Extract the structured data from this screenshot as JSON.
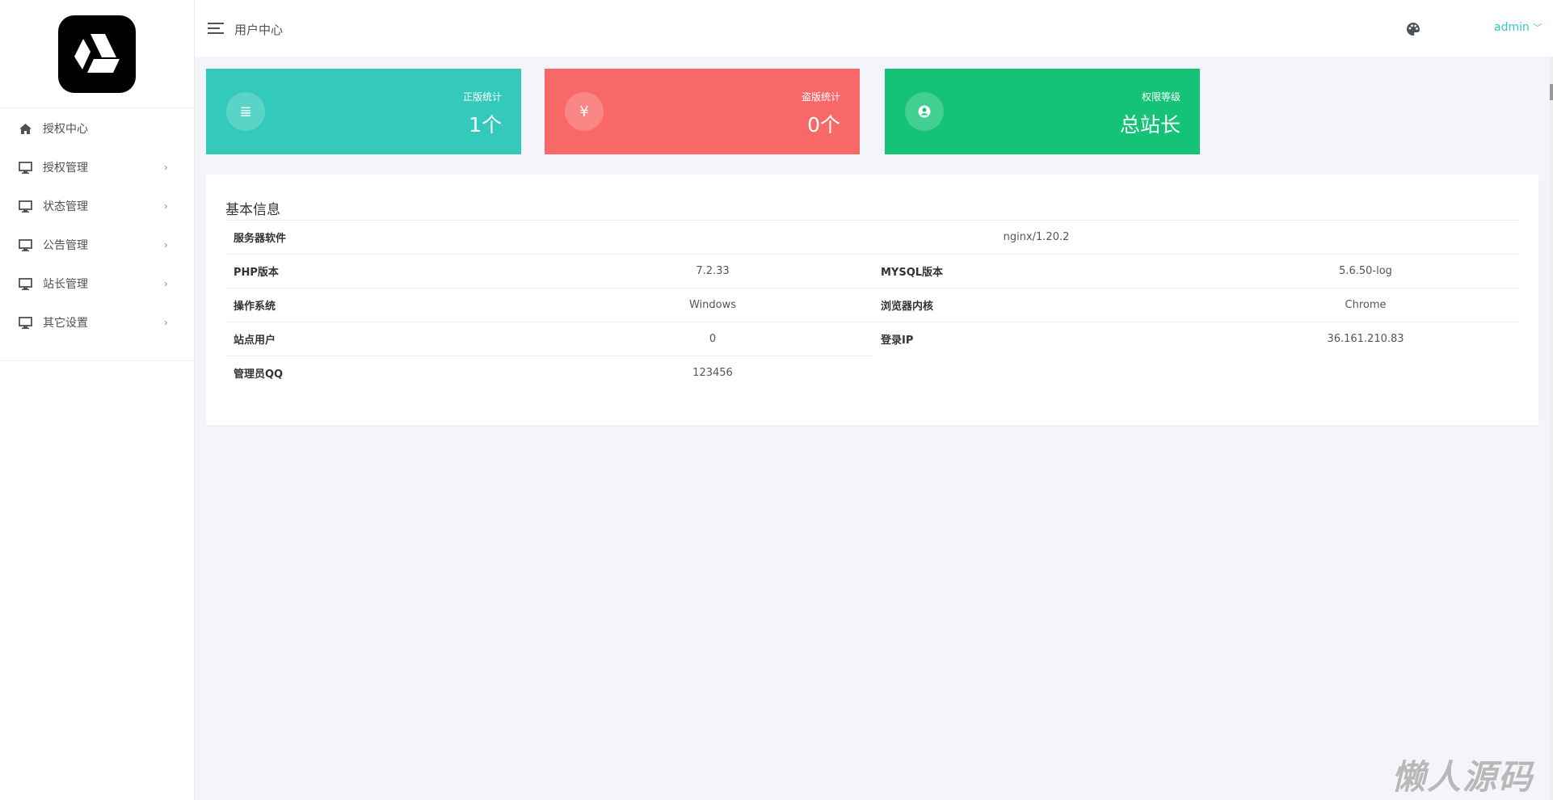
{
  "sidebar": {
    "items": [
      {
        "label": "授权中心",
        "icon": "home-icon"
      },
      {
        "label": "授权管理",
        "icon": "monitor-icon"
      },
      {
        "label": "状态管理",
        "icon": "monitor-icon"
      },
      {
        "label": "公告管理",
        "icon": "monitor-icon"
      },
      {
        "label": "站长管理",
        "icon": "monitor-icon"
      },
      {
        "label": "其它设置",
        "icon": "monitor-icon"
      }
    ]
  },
  "header": {
    "title": "用户中心",
    "user": "admin"
  },
  "cards": [
    {
      "label": "正版统计",
      "value": "1个",
      "color": "#33cabb",
      "icon": "list-icon"
    },
    {
      "label": "盗版统计",
      "value": "0个",
      "color": "#f96868",
      "icon": "yen-icon"
    },
    {
      "label": "权限等级",
      "value": "总站长",
      "color": "#15c377",
      "icon": "user-circle-icon"
    }
  ],
  "info": {
    "title": "基本信息",
    "server_label": "服务器软件",
    "server_value": "nginx/1.20.2",
    "php_label": "PHP版本",
    "php_value": "7.2.33",
    "mysql_label": "MYSQL版本",
    "mysql_value": "5.6.50-log",
    "os_label": "操作系统",
    "os_value": "Windows",
    "browser_label": "浏览器内核",
    "browser_value": "Chrome",
    "users_label": "站点用户",
    "users_value": "0",
    "ip_label": "登录IP",
    "ip_value": "36.161.210.83",
    "qq_label": "管理员QQ",
    "qq_value": "123456"
  },
  "watermark": "懒人源码"
}
